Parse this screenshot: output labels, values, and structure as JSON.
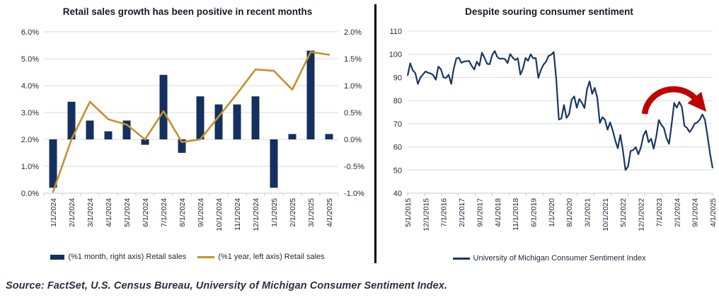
{
  "source_note": "Source: FactSet, U.S. Census Bureau, University of Michigan Consumer Sentiment Index.",
  "colors": {
    "bar_navy": "#14305e",
    "line_gold": "#c3922b",
    "sentiment_navy": "#1a3763",
    "annotation_red": "#c00000",
    "grid": "#d9d9d9",
    "axis": "#c8c8c8",
    "tick_text": "#232938",
    "title_text": "#141b29",
    "divider": "#000000",
    "background": "#ffffff"
  },
  "chart_data": [
    {
      "id": "retail-sales",
      "type": "bar",
      "title": "Retail sales growth has been positive in recent months",
      "categories": [
        "1/1/2024",
        "2/1/2024",
        "3/1/2024",
        "4/1/2024",
        "5/1/2024",
        "6/1/2024",
        "7/1/2024",
        "8/1/2024",
        "9/1/2024",
        "10/1/2024",
        "11/1/2024",
        "12/1/2024",
        "1/1/2025",
        "2/1/2025",
        "3/1/2025",
        "4/1/2025"
      ],
      "series": [
        {
          "name": "(%1 month, right axis) Retail sales",
          "type": "bar",
          "axis": "right",
          "values": [
            -0.9,
            0.7,
            0.35,
            0.15,
            0.35,
            -0.1,
            1.2,
            -0.25,
            0.8,
            0.65,
            0.65,
            0.8,
            -0.9,
            0.1,
            1.65,
            0.1
          ]
        },
        {
          "name": "(%1 year, left axis) Retail sales",
          "type": "line",
          "axis": "left",
          "values": [
            0.05,
            2.0,
            3.4,
            2.75,
            2.55,
            2.0,
            3.05,
            1.9,
            2.0,
            2.85,
            3.7,
            4.6,
            4.55,
            3.85,
            5.25,
            5.15
          ]
        }
      ],
      "left_axis": {
        "min": 0,
        "max": 6,
        "step": 1,
        "tick_labels": [
          "0.0%",
          "1.0%",
          "2.0%",
          "3.0%",
          "4.0%",
          "5.0%",
          "6.0%"
        ]
      },
      "right_axis": {
        "min": -1,
        "max": 2,
        "step": 0.5,
        "tick_labels": [
          "-1.0%",
          "-0.5%",
          "0.0%",
          "0.5%",
          "1.0%",
          "1.5%",
          "2.0%"
        ]
      },
      "grid": true,
      "legend_position": "bottom"
    },
    {
      "id": "consumer-sentiment",
      "type": "line",
      "title": "Despite souring consumer sentiment",
      "x_start": "5/1/2015",
      "x_end": "4/1/2025",
      "x_tick_labels": [
        "5/1/2015",
        "12/1/2015",
        "7/1/2016",
        "2/1/2017",
        "9/1/2017",
        "4/1/2018",
        "11/1/2018",
        "6/1/2019",
        "1/1/2020",
        "8/1/2020",
        "3/1/2021",
        "10/1/2021",
        "5/1/2022",
        "12/1/2022",
        "7/1/2023",
        "2/1/2024",
        "9/1/2024",
        "4/1/2025"
      ],
      "x_label_every_n_months": 7,
      "series": [
        {
          "name": "University of Michigan Consumer Sentiment Index",
          "type": "line",
          "values": [
            90.7,
            96.1,
            93.1,
            91.9,
            87.2,
            90.0,
            91.3,
            92.6,
            92.0,
            91.7,
            91.0,
            89.0,
            94.7,
            93.5,
            90.0,
            89.8,
            91.2,
            87.2,
            93.8,
            98.2,
            98.5,
            96.3,
            96.9,
            97.0,
            97.1,
            95.0,
            93.4,
            96.8,
            95.1,
            100.7,
            98.5,
            95.9,
            95.7,
            99.7,
            101.4,
            98.8,
            98.0,
            98.2,
            97.9,
            96.2,
            100.1,
            98.6,
            97.5,
            98.3,
            91.2,
            93.8,
            98.4,
            97.2,
            100.0,
            98.2,
            98.4,
            89.8,
            93.2,
            95.5,
            96.8,
            99.3,
            99.8,
            101.0,
            89.1,
            71.8,
            72.3,
            78.1,
            72.5,
            74.1,
            80.4,
            81.8,
            76.9,
            80.7,
            79.0,
            76.8,
            84.9,
            88.3,
            82.9,
            85.5,
            81.2,
            70.3,
            72.8,
            71.7,
            67.4,
            70.6,
            67.2,
            62.8,
            59.4,
            65.2,
            58.4,
            50.0,
            51.5,
            58.2,
            58.6,
            59.9,
            56.8,
            59.7,
            64.9,
            67.0,
            62.0,
            63.5,
            59.2,
            64.4,
            71.6,
            69.5,
            68.1,
            63.8,
            61.3,
            69.7,
            79.0,
            76.9,
            79.4,
            77.2,
            69.1,
            68.2,
            66.4,
            67.9,
            70.1,
            70.5,
            71.8,
            74.0,
            71.7,
            64.7,
            57.0,
            50.8
          ]
        }
      ],
      "y_axis": {
        "min": 40,
        "max": 110,
        "step": 10,
        "tick_labels": [
          "40",
          "50",
          "60",
          "70",
          "80",
          "90",
          "100",
          "110"
        ]
      },
      "annotation": {
        "type": "arc-arrow",
        "meaning": "sentiment rolling over"
      },
      "grid": true,
      "legend_position": "bottom"
    }
  ]
}
